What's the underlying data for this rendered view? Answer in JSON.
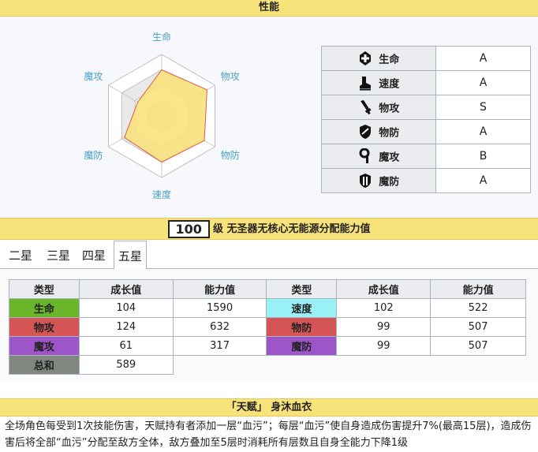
{
  "performance": {
    "header": "性能",
    "ratings": [
      {
        "name": "生命",
        "icon": "health-cross-icon",
        "grade": "A"
      },
      {
        "name": "速度",
        "icon": "boot-icon",
        "grade": "A"
      },
      {
        "name": "物攻",
        "icon": "sword-icon",
        "grade": "S"
      },
      {
        "name": "物防",
        "icon": "shield-icon",
        "grade": "A"
      },
      {
        "name": "魔攻",
        "icon": "magic-staff-icon",
        "grade": "B"
      },
      {
        "name": "魔防",
        "icon": "magic-shield-icon",
        "grade": "A"
      }
    ]
  },
  "chart_data": {
    "type": "radar",
    "axes": [
      "生命",
      "物攻",
      "物防",
      "速度",
      "魔防",
      "魔攻"
    ],
    "values": [
      0.75,
      0.85,
      0.8,
      0.75,
      0.7,
      0.45
    ],
    "levels": 4,
    "fill_color": "#fbe27d",
    "stroke_color": "#e05a4a"
  },
  "level": {
    "value": "100",
    "suffix": "级 无圣器无核心无能源分配能力值"
  },
  "tabs": [
    "二星",
    "三星",
    "四星",
    "五星"
  ],
  "active_tab": 3,
  "stats": {
    "headers": [
      "类型",
      "成长值",
      "能力值",
      "类型",
      "成长值",
      "能力值"
    ],
    "rows": [
      [
        {
          "name": "生命",
          "color": "#6bb52a",
          "growth": "104",
          "value": "1590"
        },
        {
          "name": "速度",
          "color": "#9af0f7",
          "growth": "102",
          "value": "522"
        }
      ],
      [
        {
          "name": "物攻",
          "color": "#d45553",
          "growth": "124",
          "value": "632"
        },
        {
          "name": "物防",
          "color": "#d45553",
          "growth": "99",
          "value": "507"
        }
      ],
      [
        {
          "name": "魔攻",
          "color": "#9d55c9",
          "growth": "61",
          "value": "317"
        },
        {
          "name": "魔防",
          "color": "#9d55c9",
          "growth": "99",
          "value": "507"
        }
      ]
    ],
    "total": {
      "name": "总和",
      "color": "#7f8780",
      "value": "589"
    }
  },
  "talent": {
    "header": "「天赋」 身沐血衣",
    "description": "全场角色每受到1次技能伤害，天赋持有者添加一层“血污”；每层“血污”使自身造成伤害提升7%(最高15层)，造成伤害后将全部“血污”分配至敌方全体，敌方叠加至5层时消耗所有层数且自身全能力下降1级"
  }
}
